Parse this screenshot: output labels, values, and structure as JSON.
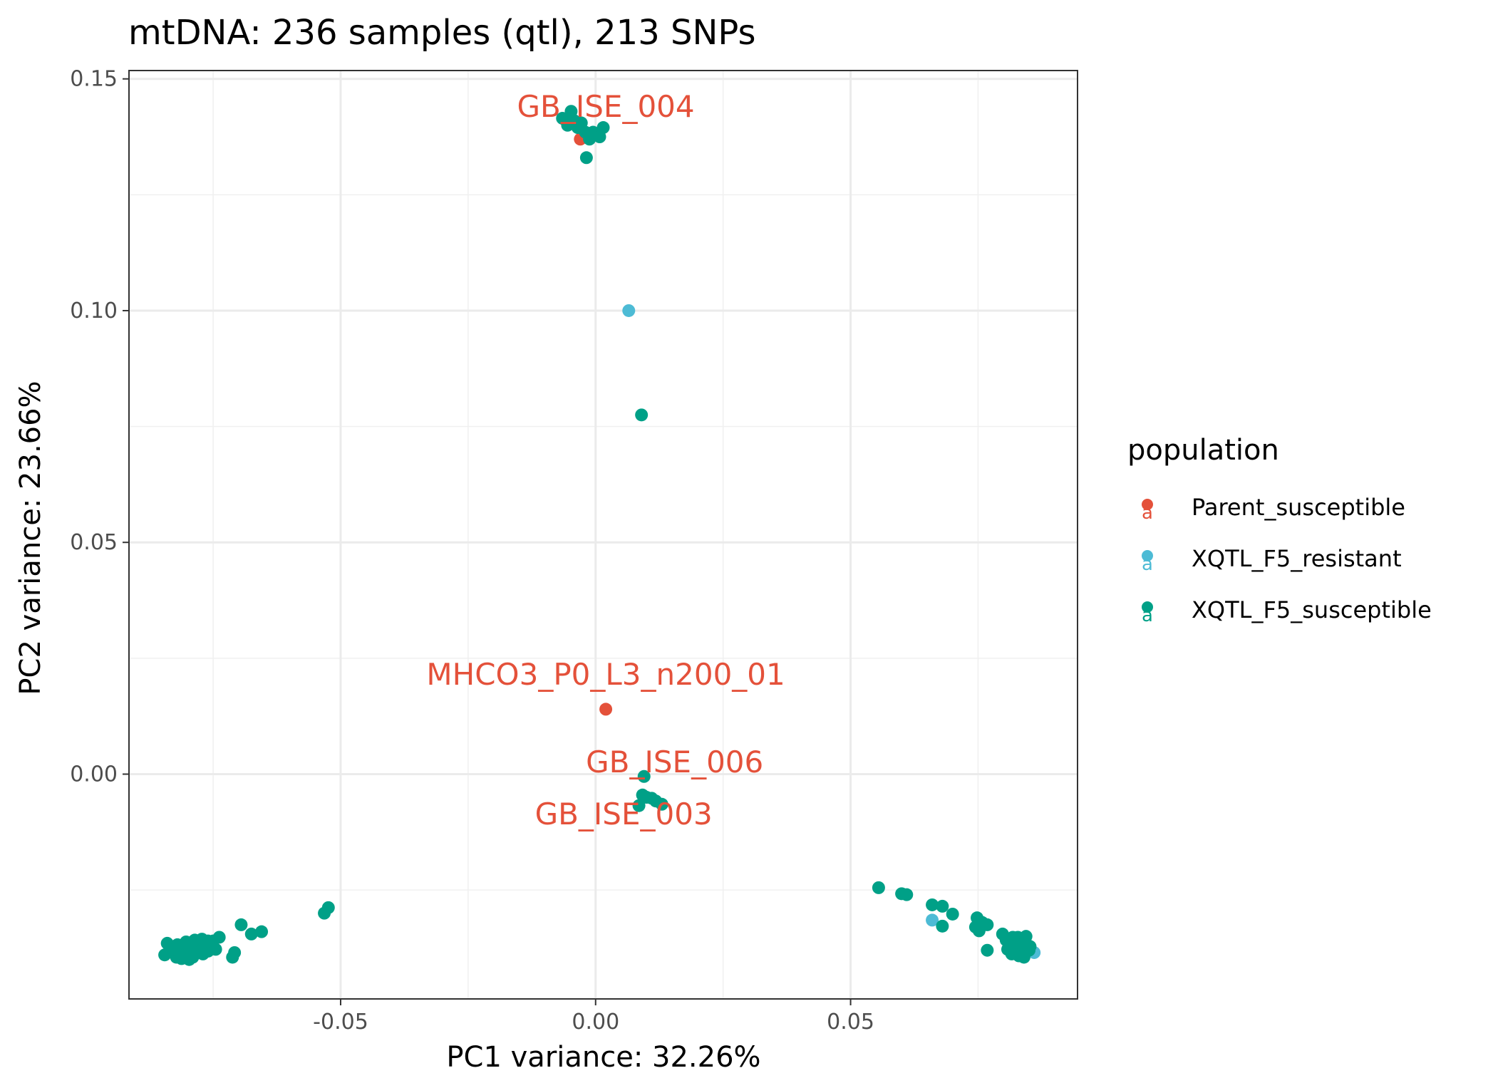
{
  "chart_data": {
    "type": "scatter",
    "title": "mtDNA: 236 samples (qtl), 213 SNPs",
    "xlabel": "PC1 variance: 32.26%",
    "ylabel": "PC2 variance: 23.66%",
    "xlim": [
      -0.0915,
      0.0945
    ],
    "ylim": [
      -0.0485,
      0.1518
    ],
    "x_ticks": [
      -0.05,
      0.0,
      0.05
    ],
    "x_tick_labels": [
      "-0.05",
      "0.00",
      "0.05"
    ],
    "y_ticks": [
      0.0,
      0.05,
      0.1,
      0.15
    ],
    "y_tick_labels": [
      "0.00",
      "0.05",
      "0.10",
      "0.15"
    ],
    "grid": true,
    "legend": {
      "title": "population",
      "position": "right",
      "symbol_text": "a"
    },
    "series": [
      {
        "name": "Parent_susceptible",
        "color": "#E4513A",
        "points": [
          [
            -0.003,
            0.137
          ],
          [
            -0.0025,
            0.1385
          ],
          [
            0.002,
            0.014
          ]
        ]
      },
      {
        "name": "XQTL_F5_resistant",
        "color": "#4DBBD5",
        "points": [
          [
            0.0065,
            0.1
          ],
          [
            0.066,
            -0.0315
          ],
          [
            0.086,
            -0.0385
          ],
          [
            0.0842,
            -0.0378
          ]
        ]
      },
      {
        "name": "XQTL_F5_susceptible",
        "color": "#00A087",
        "points": [
          [
            -0.0065,
            0.1415
          ],
          [
            -0.0055,
            0.14
          ],
          [
            -0.0048,
            0.143
          ],
          [
            -0.0042,
            0.141
          ],
          [
            -0.0035,
            0.1395
          ],
          [
            -0.0028,
            0.1405
          ],
          [
            -0.002,
            0.1385
          ],
          [
            -0.0012,
            0.137
          ],
          [
            -0.0005,
            0.1385
          ],
          [
            0.0008,
            0.1375
          ],
          [
            0.0015,
            0.1395
          ],
          [
            -0.0018,
            0.133
          ],
          [
            0.009,
            0.0775
          ],
          [
            0.0095,
            -0.0005
          ],
          [
            0.0092,
            -0.0045
          ],
          [
            0.01,
            -0.005
          ],
          [
            0.011,
            -0.0052
          ],
          [
            0.0118,
            -0.0058
          ],
          [
            0.013,
            -0.0065
          ],
          [
            0.0085,
            -0.0068
          ],
          [
            -0.0845,
            -0.039
          ],
          [
            -0.0835,
            -0.0375
          ],
          [
            -0.0828,
            -0.0385
          ],
          [
            -0.0822,
            -0.0395
          ],
          [
            -0.0815,
            -0.038
          ],
          [
            -0.0808,
            -0.0368
          ],
          [
            -0.08,
            -0.039
          ],
          [
            -0.0795,
            -0.0378
          ],
          [
            -0.079,
            -0.0395
          ],
          [
            -0.0784,
            -0.0372
          ],
          [
            -0.078,
            -0.0385
          ],
          [
            -0.0776,
            -0.0365
          ],
          [
            -0.077,
            -0.0388
          ],
          [
            -0.0765,
            -0.0372
          ],
          [
            -0.076,
            -0.0382
          ],
          [
            -0.0755,
            -0.0368
          ],
          [
            -0.075,
            -0.036
          ],
          [
            -0.0745,
            -0.0378
          ],
          [
            -0.0738,
            -0.0352
          ],
          [
            -0.084,
            -0.0365
          ],
          [
            -0.082,
            -0.0368
          ],
          [
            -0.0803,
            -0.0362
          ],
          [
            -0.0786,
            -0.0358
          ],
          [
            -0.0772,
            -0.0356
          ],
          [
            -0.0812,
            -0.0398
          ],
          [
            -0.0797,
            -0.04
          ],
          [
            -0.0825,
            -0.0378
          ],
          [
            -0.076,
            -0.036
          ],
          [
            -0.0712,
            -0.0395
          ],
          [
            -0.0708,
            -0.0385
          ],
          [
            -0.0695,
            -0.0325
          ],
          [
            -0.0675,
            -0.0345
          ],
          [
            -0.0655,
            -0.034
          ],
          [
            -0.0532,
            -0.03
          ],
          [
            -0.0524,
            -0.0288
          ],
          [
            0.0555,
            -0.0245
          ],
          [
            0.06,
            -0.0258
          ],
          [
            0.061,
            -0.026
          ],
          [
            0.066,
            -0.0282
          ],
          [
            0.068,
            -0.0285
          ],
          [
            0.07,
            -0.0302
          ],
          [
            0.068,
            -0.0328
          ],
          [
            0.0748,
            -0.031
          ],
          [
            0.0758,
            -0.032
          ],
          [
            0.0768,
            -0.0325
          ],
          [
            0.0745,
            -0.033
          ],
          [
            0.0752,
            -0.0338
          ],
          [
            0.0768,
            -0.038
          ],
          [
            0.0798,
            -0.0345
          ],
          [
            0.0805,
            -0.0358
          ],
          [
            0.0812,
            -0.037
          ],
          [
            0.0818,
            -0.0352
          ],
          [
            0.0822,
            -0.0382
          ],
          [
            0.0826,
            -0.0365
          ],
          [
            0.083,
            -0.0392
          ],
          [
            0.0834,
            -0.0375
          ],
          [
            0.0838,
            -0.0358
          ],
          [
            0.0842,
            -0.0385
          ],
          [
            0.0846,
            -0.0368
          ],
          [
            0.085,
            -0.038
          ],
          [
            0.0808,
            -0.0378
          ],
          [
            0.0816,
            -0.0388
          ],
          [
            0.0828,
            -0.0352
          ],
          [
            0.084,
            -0.0395
          ],
          [
            0.0852,
            -0.0372
          ],
          [
            0.082,
            -0.0362
          ],
          [
            0.0832,
            -0.0385
          ],
          [
            0.0844,
            -0.035
          ],
          [
            0.0814,
            -0.0372
          ],
          [
            0.0836,
            -0.0368
          ]
        ]
      }
    ],
    "annotations": [
      {
        "text": "GB_ISE_004",
        "x": 0.002,
        "y": 0.1418
      },
      {
        "text": "MHCO3_P0_L3_n200_01",
        "x": 0.002,
        "y": 0.0193
      },
      {
        "text": "GB_ISE_006",
        "x": 0.0155,
        "y": 0.0004
      },
      {
        "text": "GB_ISE_003",
        "x": 0.0055,
        "y": -0.0108
      }
    ],
    "annotation_color": "#E4513A"
  }
}
